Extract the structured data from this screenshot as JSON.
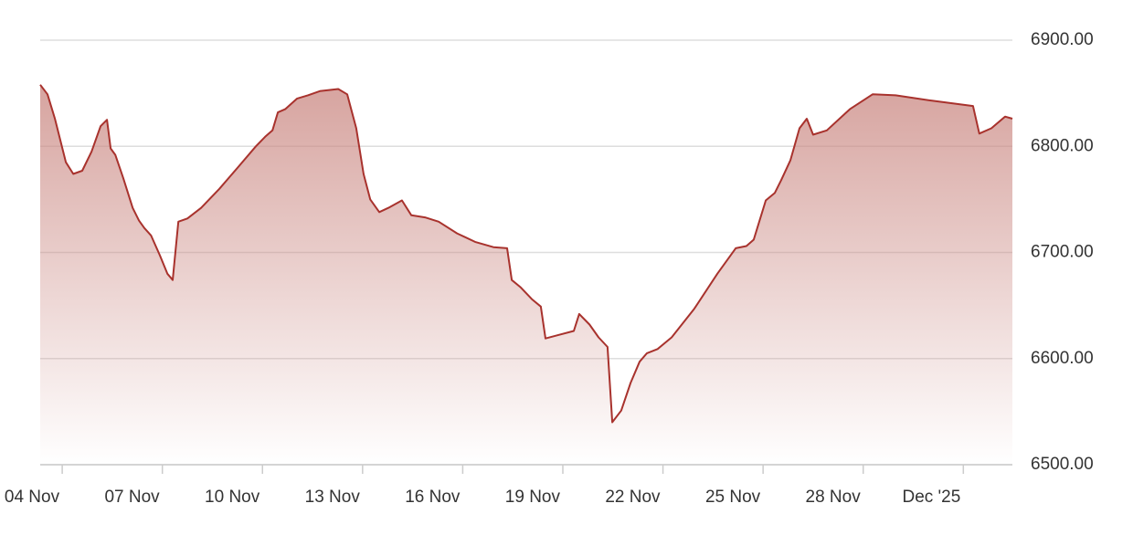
{
  "chart_data": {
    "type": "area",
    "line_color": "#a8322d",
    "fill_color": "#c9857f",
    "grid": true,
    "x": [
      -0.66,
      -0.44,
      -0.22,
      0.11,
      0.33,
      0.6,
      0.88,
      1.15,
      1.34,
      1.45,
      1.59,
      1.83,
      2.11,
      2.3,
      2.46,
      2.66,
      2.93,
      3.15,
      3.31,
      3.48,
      3.75,
      4.16,
      4.71,
      5.26,
      5.8,
      6.08,
      6.3,
      6.46,
      6.68,
      7.04,
      7.36,
      7.72,
      8.27,
      8.54,
      8.81,
      9.03,
      9.23,
      9.5,
      9.77,
      10.18,
      10.46,
      10.87,
      11.28,
      11.83,
      12.37,
      12.92,
      13.33,
      13.47,
      13.74,
      14.07,
      14.34,
      14.48,
      14.84,
      15.33,
      15.49,
      15.8,
      16.07,
      16.34,
      16.48,
      16.75,
      17.03,
      17.3,
      17.52,
      17.84,
      18.26,
      18.94,
      19.63,
      20.18,
      20.5,
      20.72,
      21.08,
      21.35,
      21.54,
      21.82,
      22.09,
      22.31,
      22.5,
      22.91,
      23.6,
      24.28,
      24.97,
      26.06,
      27.29,
      27.48,
      27.84,
      28.25,
      28.47
    ],
    "series": [
      {
        "values": [
          6858,
          6849,
          6826,
          6785,
          6774,
          6777,
          6795,
          6819,
          6825,
          6798,
          6792,
          6770,
          6742,
          6730,
          6723,
          6716,
          6697,
          6680,
          6674,
          6729,
          6732,
          6742,
          6760,
          6780,
          6800,
          6809,
          6815,
          6832,
          6835,
          6845,
          6848,
          6852,
          6854,
          6849,
          6817,
          6774,
          6750,
          6738,
          6742,
          6749,
          6735,
          6733,
          6729,
          6718,
          6710,
          6705,
          6704,
          6674,
          6667,
          6656,
          6649,
          6619,
          6622,
          6626,
          6642,
          6632,
          6620,
          6611,
          6540,
          6551,
          6577,
          6597,
          6605,
          6609,
          6620,
          6647,
          6680,
          6704,
          6706,
          6712,
          6749,
          6756,
          6768,
          6787,
          6817,
          6826,
          6811,
          6815,
          6835,
          6849,
          6848,
          6843,
          6838,
          6812,
          6817,
          6828,
          6826
        ]
      }
    ],
    "xlim": [
      -0.66,
      28.47
    ],
    "xticks": [
      {
        "value": 0,
        "label": "04 Nov"
      },
      {
        "value": 3,
        "label": "07 Nov"
      },
      {
        "value": 6,
        "label": "10 Nov"
      },
      {
        "value": 9,
        "label": "13 Nov"
      },
      {
        "value": 12,
        "label": "16 Nov"
      },
      {
        "value": 15,
        "label": "19 Nov"
      },
      {
        "value": 18,
        "label": "22 Nov"
      },
      {
        "value": 21,
        "label": "25 Nov"
      },
      {
        "value": 24,
        "label": "28 Nov"
      },
      {
        "value": 27,
        "label": "Dec '25"
      }
    ],
    "ylim": [
      6500,
      6900
    ],
    "yticks": [
      {
        "value": 6500,
        "label": "6500.00"
      },
      {
        "value": 6600,
        "label": "6600.00"
      },
      {
        "value": 6700,
        "label": "6700.00"
      },
      {
        "value": 6800,
        "label": "6800.00"
      },
      {
        "value": 6900,
        "label": "6900.00"
      }
    ]
  }
}
